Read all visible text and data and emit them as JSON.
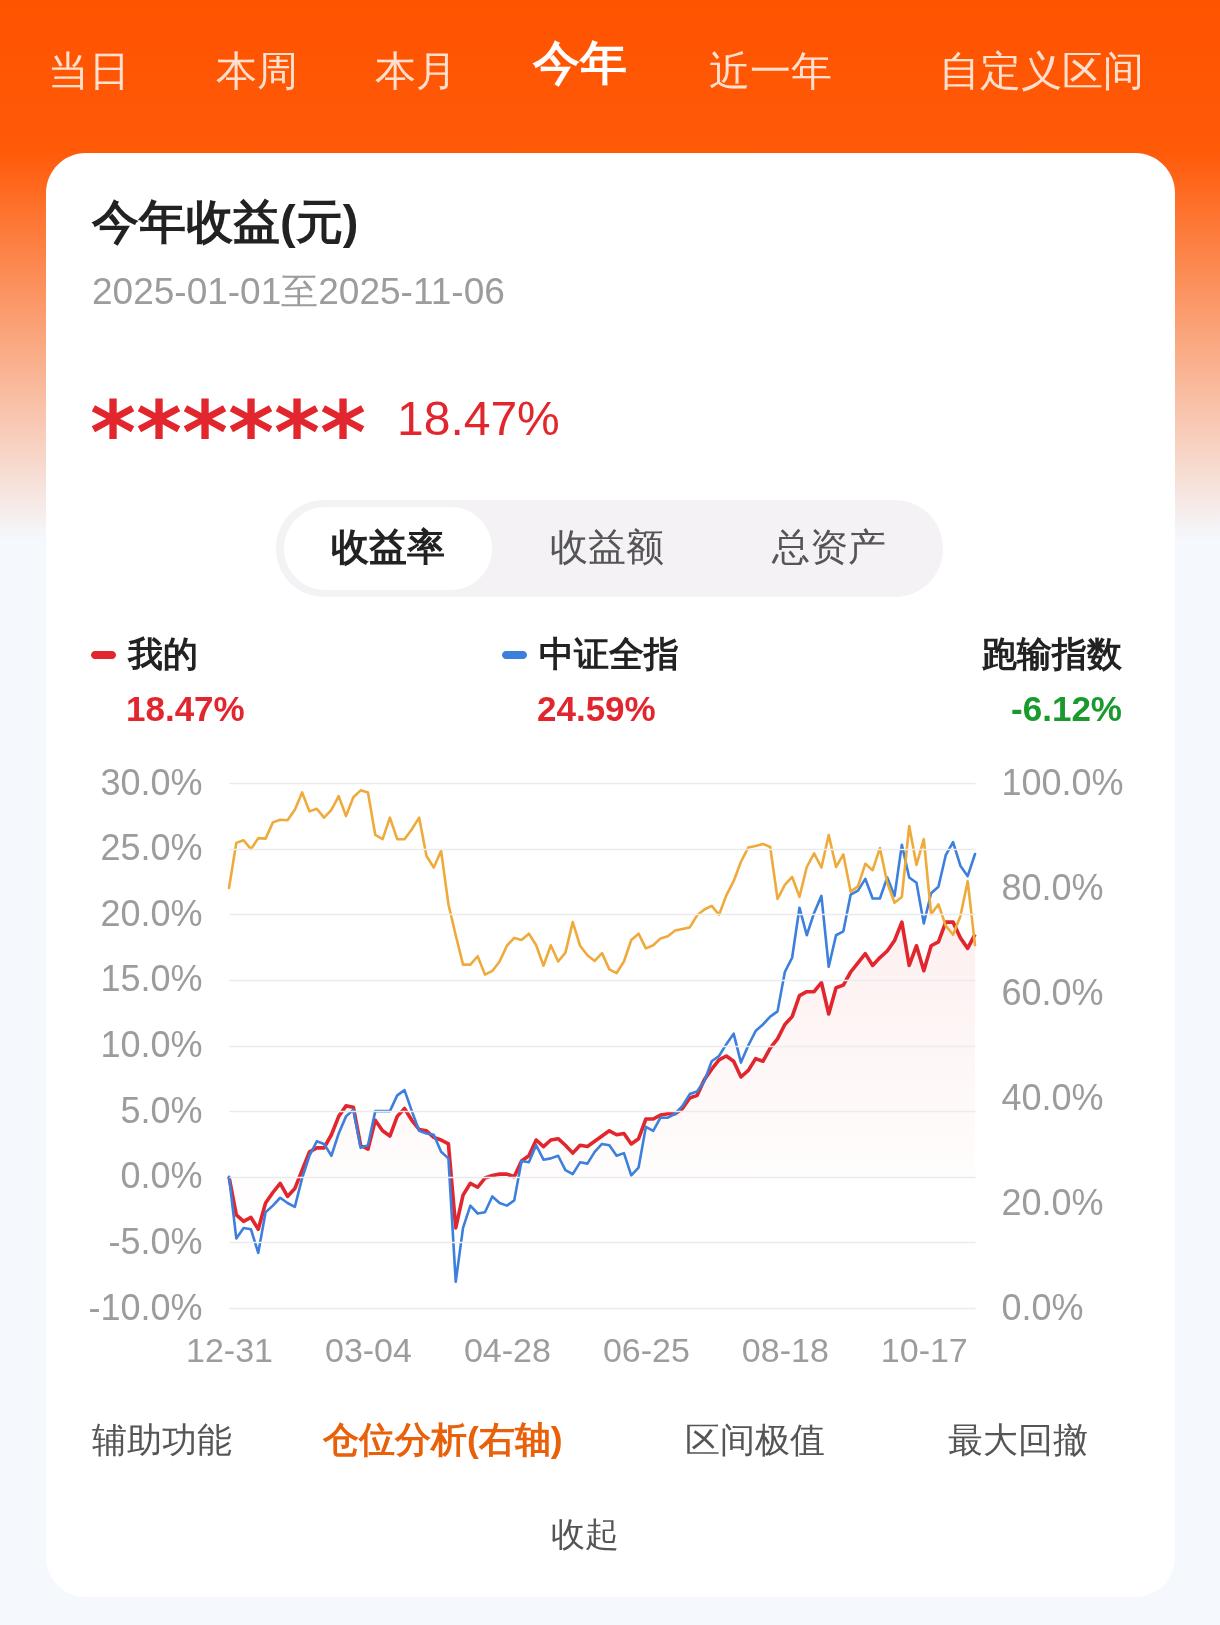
{
  "chart_data": {
    "type": "line",
    "title": "今年收益(元)",
    "subtitle": "2025-01-01至2025-11-06",
    "annotations": [
      "当日",
      "本周",
      "本月",
      "今年",
      "近一年",
      "自定义区间",
      "******",
      "18.47%",
      "收益率",
      "收益额",
      "总资产",
      "18.47%",
      "24.59%",
      "跑输指数",
      "-6.12%",
      "辅助功能",
      "仓位分析(右轴)",
      "区间极值",
      "最大回撤",
      "收起"
    ],
    "categories": [
      "12-31",
      null,
      null,
      null,
      null,
      null,
      null,
      null,
      null,
      null,
      null,
      null,
      null,
      null,
      null,
      null,
      null,
      null,
      null,
      "03-04",
      null,
      null,
      null,
      null,
      null,
      null,
      null,
      null,
      null,
      null,
      null,
      null,
      null,
      null,
      null,
      null,
      null,
      null,
      "04-28",
      null,
      null,
      null,
      null,
      null,
      null,
      null,
      null,
      null,
      null,
      null,
      null,
      null,
      null,
      null,
      null,
      null,
      null,
      "06-25",
      null,
      null,
      null,
      null,
      null,
      null,
      null,
      null,
      null,
      null,
      null,
      null,
      null,
      null,
      null,
      null,
      null,
      null,
      "08-18",
      null,
      null,
      null,
      null,
      null,
      null,
      null,
      null,
      null,
      null,
      null,
      null,
      null,
      null,
      null,
      null,
      null,
      null,
      "10-17",
      null,
      null,
      null,
      null,
      null,
      null,
      null
    ],
    "ylim": [
      -10,
      30
    ],
    "yticks": [
      {
        "value": -10,
        "label": "-10.0%"
      },
      {
        "value": -5,
        "label": "-5.0%"
      },
      {
        "value": 0,
        "label": "0.0%"
      },
      {
        "value": 5,
        "label": "5.0%"
      },
      {
        "value": 10,
        "label": "10.0%"
      },
      {
        "value": 15,
        "label": "15.0%"
      },
      {
        "value": 20,
        "label": "20.0%"
      },
      {
        "value": 25,
        "label": "25.0%"
      },
      {
        "value": 30,
        "label": "30.0%"
      }
    ],
    "y2lim": [
      0,
      100
    ],
    "y2ticks": [
      {
        "value": 0,
        "label": "0.0%"
      },
      {
        "value": 20,
        "label": "20.0%"
      },
      {
        "value": 40,
        "label": "40.0%"
      },
      {
        "value": 60,
        "label": "60.0%"
      },
      {
        "value": 80,
        "label": "80.0%"
      },
      {
        "value": 100,
        "label": "100.0%"
      }
    ],
    "grid": "y",
    "legend": "top",
    "series": [
      {
        "name": "我的",
        "type": "area",
        "color": "#e2262d",
        "values": [
          0.0,
          -2.9,
          -3.4,
          -3.1,
          -4.0,
          -2.0,
          -1.2,
          -0.5,
          -1.5,
          -0.9,
          0.5,
          1.9,
          2.2,
          2.2,
          3.2,
          4.6,
          5.4,
          5.3,
          2.4,
          2.1,
          4.3,
          3.5,
          3.1,
          4.6,
          5.2,
          4.3,
          3.6,
          3.5,
          3.0,
          2.8,
          2.5,
          -3.9,
          -1.4,
          -0.5,
          -0.8,
          -0.1,
          0.1,
          0.2,
          0.2,
          0.0,
          1.2,
          1.6,
          2.8,
          2.3,
          2.8,
          2.9,
          2.4,
          1.8,
          2.4,
          2.3,
          2.7,
          3.1,
          3.5,
          3.2,
          3.3,
          2.5,
          2.9,
          4.4,
          4.4,
          4.7,
          4.8,
          4.8,
          5.2,
          6.0,
          6.2,
          7.4,
          8.2,
          8.9,
          9.2,
          8.8,
          7.6,
          8.1,
          9.0,
          8.8,
          9.8,
          10.5,
          11.6,
          12.2,
          13.8,
          14.1,
          14.1,
          14.8,
          12.4,
          14.4,
          14.6,
          15.6,
          16.3,
          17.0,
          16.1,
          16.7,
          17.2,
          18.0,
          19.4,
          16.1,
          17.6,
          15.7,
          17.6,
          17.9,
          19.4,
          19.4,
          18.2,
          17.4,
          18.47
        ]
      },
      {
        "name": "中证全指",
        "color": "#3d7fdc",
        "values": [
          0.0,
          -4.7,
          -3.9,
          -4.0,
          -5.8,
          -2.7,
          -2.2,
          -1.6,
          -2.0,
          -2.3,
          -0.1,
          1.6,
          2.7,
          2.5,
          1.6,
          3.3,
          4.6,
          5.1,
          2.2,
          2.4,
          5.0,
          5.0,
          5.0,
          6.2,
          6.6,
          5.0,
          3.5,
          3.3,
          3.2,
          1.9,
          1.4,
          -8.0,
          -3.9,
          -2.2,
          -2.8,
          -2.7,
          -1.5,
          -2.0,
          -2.2,
          -1.8,
          1.2,
          1.1,
          2.4,
          1.3,
          1.4,
          1.6,
          0.5,
          0.2,
          1.1,
          1.0,
          1.9,
          2.5,
          2.4,
          1.6,
          1.8,
          0.1,
          0.7,
          3.8,
          3.5,
          4.5,
          4.5,
          4.8,
          5.4,
          6.3,
          6.5,
          7.3,
          8.8,
          9.2,
          10.1,
          10.9,
          8.7,
          10.0,
          11.1,
          11.6,
          12.2,
          12.6,
          15.6,
          16.7,
          20.5,
          18.4,
          20.1,
          21.4,
          16.0,
          18.4,
          18.7,
          21.5,
          21.8,
          22.7,
          21.2,
          21.2,
          22.8,
          21.4,
          25.3,
          22.8,
          22.4,
          19.3,
          21.6,
          22.1,
          24.5,
          25.5,
          23.7,
          22.9,
          24.59
        ]
      },
      {
        "axis": "y2",
        "color": "#efaa3c",
        "values": [
          80.0,
          88.6,
          89.1,
          87.4,
          89.5,
          89.4,
          92.5,
          93.0,
          92.9,
          94.9,
          98.2,
          94.6,
          95.1,
          93.4,
          94.9,
          97.5,
          93.7,
          97.3,
          98.6,
          98.2,
          90.1,
          89.3,
          93.4,
          89.3,
          89.3,
          91.2,
          93.4,
          86.1,
          83.9,
          87.1,
          76.9,
          71.0,
          65.4,
          65.4,
          67.0,
          63.5,
          64.2,
          66.0,
          69.0,
          70.5,
          70.1,
          71.3,
          69.1,
          65.2,
          69.1,
          66.0,
          67.7,
          73.5,
          69.0,
          67.2,
          66.1,
          67.6,
          64.5,
          63.8,
          66.0,
          70.1,
          71.3,
          68.5,
          69.1,
          70.4,
          70.8,
          71.9,
          72.2,
          72.5,
          74.8,
          75.9,
          76.6,
          74.9,
          78.6,
          81.3,
          85.0,
          87.7,
          88.0,
          88.4,
          87.8,
          77.9,
          80.6,
          82.1,
          78.3,
          84.0,
          86.6,
          83.9,
          90.1,
          84.0,
          86.4,
          79.3,
          80.3,
          84.6,
          83.4,
          87.6,
          81.0,
          77.2,
          78.3,
          91.8,
          84.4,
          89.3,
          75.0,
          76.9,
          72.8,
          71.1,
          74.6,
          81.3,
          69.1
        ]
      }
    ]
  }
}
